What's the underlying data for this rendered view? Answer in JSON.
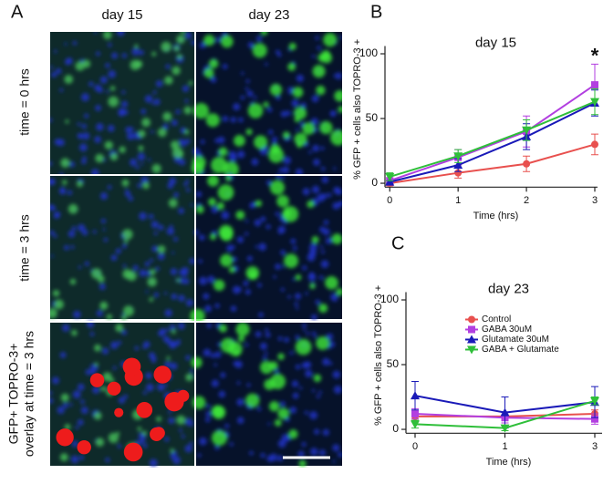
{
  "panels": {
    "a": "A",
    "col1": "day 15",
    "col2": "day 23",
    "row1": "time = 0 hrs",
    "row2": "time = 3 hrs",
    "row3_line1": "GFP+ TOPRO-3+",
    "row3_line2": "overlay at time = 3 hrs"
  },
  "chart_data": [
    {
      "type": "line",
      "panel": "B",
      "title": "day 15",
      "ylabel": "% GFP + cells also TOPRO-3 +",
      "xlabel": "Time (hrs)",
      "annotation": "*",
      "x": [
        0,
        1,
        2,
        3
      ],
      "xlim": [
        -0.07,
        3.04
      ],
      "xticks": [
        0,
        1,
        2,
        3
      ],
      "ylim": [
        -3,
        106
      ],
      "yticks": [
        0,
        50,
        100
      ],
      "series": [
        {
          "name": "Control",
          "color": "#e8504e",
          "marker": "o",
          "values": [
            0,
            8,
            15,
            30
          ],
          "errors": [
            2,
            4,
            6,
            8
          ]
        },
        {
          "name": "GABA 30uM",
          "color": "#b23fe0",
          "marker": "s",
          "values": [
            2,
            20,
            40,
            76
          ],
          "errors": [
            2,
            6,
            12,
            16
          ]
        },
        {
          "name": "Glutamate 30uM",
          "color": "#1a1ab8",
          "marker": "^",
          "values": [
            1,
            14,
            36,
            62
          ],
          "errors": [
            1,
            5,
            10,
            10
          ]
        },
        {
          "name": "GABA + Glutamate",
          "color": "#2fbf3a",
          "marker": "v",
          "values": [
            5,
            21,
            41,
            63
          ],
          "errors": [
            3,
            5,
            8,
            10
          ]
        }
      ]
    },
    {
      "type": "line",
      "panel": "C",
      "title": "day 23",
      "ylabel": "% GFP + cells also TOPRO-3 +",
      "xlabel": "Time (hrs)",
      "legend": "upper right",
      "categories": [
        "0",
        "1",
        "3"
      ],
      "ylim": [
        -3,
        106
      ],
      "yticks": [
        0,
        50,
        100
      ],
      "series": [
        {
          "name": "Control",
          "color": "#e8504e",
          "marker": "o",
          "values": [
            10,
            10,
            12
          ],
          "errors": [
            3,
            3,
            3
          ]
        },
        {
          "name": "GABA 30uM",
          "color": "#b23fe0",
          "marker": "s",
          "values": [
            12,
            9,
            8
          ],
          "errors": [
            4,
            4,
            4
          ]
        },
        {
          "name": "Glutamate 30uM",
          "color": "#1a1ab8",
          "marker": "^",
          "values": [
            26,
            13,
            21
          ],
          "errors": [
            11,
            12,
            12
          ]
        },
        {
          "name": "GABA + Glutamate",
          "color": "#2fbf3a",
          "marker": "v",
          "values": [
            4,
            1,
            22
          ],
          "errors": [
            3,
            2,
            3
          ]
        }
      ]
    }
  ]
}
